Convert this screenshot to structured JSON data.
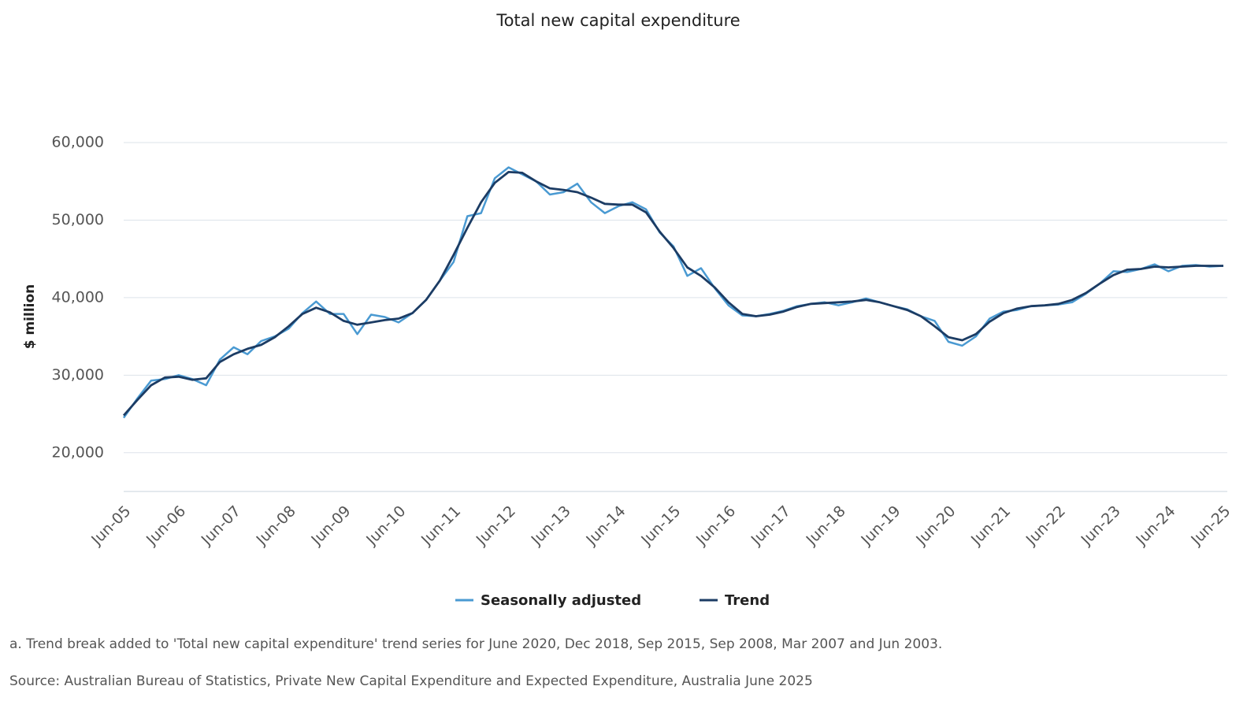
{
  "chart_data": {
    "type": "line",
    "title": "Total new capital expenditure",
    "ylabel": "$ million",
    "categories": [
      "Jun-05",
      null,
      null,
      null,
      "Jun-06",
      null,
      null,
      null,
      "Jun-07",
      null,
      null,
      null,
      "Jun-08",
      null,
      null,
      null,
      "Jun-09",
      null,
      null,
      null,
      "Jun-10",
      null,
      null,
      null,
      "Jun-11",
      null,
      null,
      null,
      "Jun-12",
      null,
      null,
      null,
      "Jun-13",
      null,
      null,
      null,
      "Jun-14",
      null,
      null,
      null,
      "Jun-15",
      null,
      null,
      null,
      "Jun-16",
      null,
      null,
      null,
      "Jun-17",
      null,
      null,
      null,
      "Jun-18",
      null,
      null,
      null,
      "Jun-19",
      null,
      null,
      null,
      "Jun-20",
      null,
      null,
      null,
      "Jun-21",
      null,
      null,
      null,
      "Jun-22",
      null,
      null,
      null,
      "Jun-23",
      null,
      null,
      null,
      "Jun-24",
      null,
      null,
      null,
      "Jun-25"
    ],
    "series": [
      {
        "name": "Seasonally adjusted",
        "color": "#4a9ad2",
        "values": [
          24500,
          27000,
          29300,
          29500,
          30000,
          29500,
          28700,
          32000,
          33600,
          32700,
          34400,
          35000,
          36000,
          38000,
          39500,
          37900,
          37900,
          35300,
          37800,
          37500,
          36800,
          38000,
          39700,
          42200,
          44600,
          50500,
          50900,
          55400,
          56800,
          55900,
          55000,
          53300,
          53600,
          54700,
          52300,
          50900,
          51800,
          52300,
          51400,
          48400,
          46600,
          42800,
          43800,
          41200,
          39000,
          37700,
          37600,
          37900,
          38300,
          38900,
          39200,
          39400,
          39000,
          39400,
          39900,
          39400,
          38900,
          38500,
          37600,
          37000,
          34300,
          33800,
          35000,
          37300,
          38200,
          38400,
          38900,
          39000,
          39100,
          39400,
          40500,
          41800,
          43400,
          43300,
          43700,
          44300,
          43400,
          44100,
          44200,
          44000,
          44100
        ]
      },
      {
        "name": "Trend",
        "color": "#1c3c64",
        "values": [
          24800,
          26800,
          28700,
          29700,
          29800,
          29400,
          29600,
          31700,
          32700,
          33400,
          33900,
          34900,
          36300,
          37900,
          38700,
          38100,
          37000,
          36500,
          36800,
          37100,
          37300,
          38000,
          39700,
          42200,
          45500,
          49000,
          52300,
          54800,
          56200,
          56100,
          55000,
          54100,
          53900,
          53600,
          52900,
          52100,
          52000,
          52000,
          51000,
          48500,
          46400,
          43900,
          42800,
          41300,
          39400,
          37900,
          37600,
          37800,
          38200,
          38800,
          39200,
          39300,
          39400,
          39500,
          39700,
          39400,
          38900,
          38400,
          37600,
          36300,
          34900,
          34500,
          35300,
          36900,
          38000,
          38600,
          38900,
          39000,
          39200,
          39700,
          40600,
          41800,
          42900,
          43600,
          43700,
          44000,
          43900,
          44000,
          44100,
          44100,
          44100
        ]
      }
    ],
    "ylim": [
      15000,
      60000
    ],
    "yticks": [
      {
        "value": 20000,
        "label": "20,000"
      },
      {
        "value": 30000,
        "label": "30,000"
      },
      {
        "value": 40000,
        "label": "40,000"
      },
      {
        "value": 50000,
        "label": "50,000"
      },
      {
        "value": 60000,
        "label": "60,000"
      }
    ],
    "grid": true,
    "legend": "bottom",
    "notes": [
      "a. Trend break added to 'Total new capital expenditure' trend series for June 2020, Dec 2018, Sep 2015, Sep 2008, Mar 2007 and Jun 2003.",
      "Source: Australian Bureau of Statistics, Private New Capital Expenditure and Expected Expenditure, Australia June 2025"
    ]
  }
}
